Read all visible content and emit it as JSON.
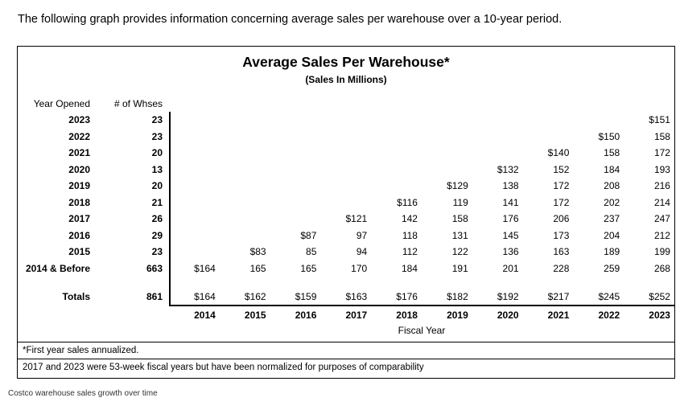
{
  "page": {
    "intro": "The following graph provides information concerning average sales per warehouse over a 10-year period.",
    "caption": "Costco warehouse sales growth over time"
  },
  "chart": {
    "title": "Average Sales Per Warehouse*",
    "subtitle": "(Sales In Millions)",
    "col_headers": {
      "year_opened": "Year Opened",
      "num_whses": "# of Whses"
    },
    "xlabel": "Fiscal Year",
    "footnotes": [
      "*First year sales annualized.",
      "2017 and 2023 were 53-week fiscal years but have been normalized for purposes of comparability"
    ]
  },
  "chart_data": {
    "type": "table",
    "title": "Average Sales Per Warehouse*",
    "subtitle": "(Sales In Millions)",
    "xlabel": "Fiscal Year",
    "ylabel_columns": [
      "Year Opened",
      "# of Whses"
    ],
    "fiscal_years": [
      "2014",
      "2015",
      "2016",
      "2017",
      "2018",
      "2019",
      "2020",
      "2021",
      "2022",
      "2023"
    ],
    "rows": [
      {
        "year_opened": "2023",
        "num_whses": "23",
        "values": [
          "",
          "",
          "",
          "",
          "",
          "",
          "",
          "",
          "",
          "$151"
        ]
      },
      {
        "year_opened": "2022",
        "num_whses": "23",
        "values": [
          "",
          "",
          "",
          "",
          "",
          "",
          "",
          "",
          "$150",
          "158"
        ]
      },
      {
        "year_opened": "2021",
        "num_whses": "20",
        "values": [
          "",
          "",
          "",
          "",
          "",
          "",
          "",
          "$140",
          "158",
          "172"
        ]
      },
      {
        "year_opened": "2020",
        "num_whses": "13",
        "values": [
          "",
          "",
          "",
          "",
          "",
          "",
          "$132",
          "152",
          "184",
          "193"
        ]
      },
      {
        "year_opened": "2019",
        "num_whses": "20",
        "values": [
          "",
          "",
          "",
          "",
          "",
          "$129",
          "138",
          "172",
          "208",
          "216"
        ]
      },
      {
        "year_opened": "2018",
        "num_whses": "21",
        "values": [
          "",
          "",
          "",
          "",
          "$116",
          "119",
          "141",
          "172",
          "202",
          "214"
        ]
      },
      {
        "year_opened": "2017",
        "num_whses": "26",
        "values": [
          "",
          "",
          "",
          "$121",
          "142",
          "158",
          "176",
          "206",
          "237",
          "247"
        ]
      },
      {
        "year_opened": "2016",
        "num_whses": "29",
        "values": [
          "",
          "",
          "$87",
          "97",
          "118",
          "131",
          "145",
          "173",
          "204",
          "212"
        ]
      },
      {
        "year_opened": "2015",
        "num_whses": "23",
        "values": [
          "",
          "$83",
          "85",
          "94",
          "112",
          "122",
          "136",
          "163",
          "189",
          "199"
        ]
      },
      {
        "year_opened": "2014 & Before",
        "num_whses": "663",
        "values": [
          "$164",
          "165",
          "165",
          "170",
          "184",
          "191",
          "201",
          "228",
          "259",
          "268"
        ]
      }
    ],
    "totals": {
      "label": "Totals",
      "num_whses": "861",
      "values": [
        "$164",
        "$162",
        "$159",
        "$163",
        "$176",
        "$182",
        "$192",
        "$217",
        "$245",
        "$252"
      ]
    }
  }
}
